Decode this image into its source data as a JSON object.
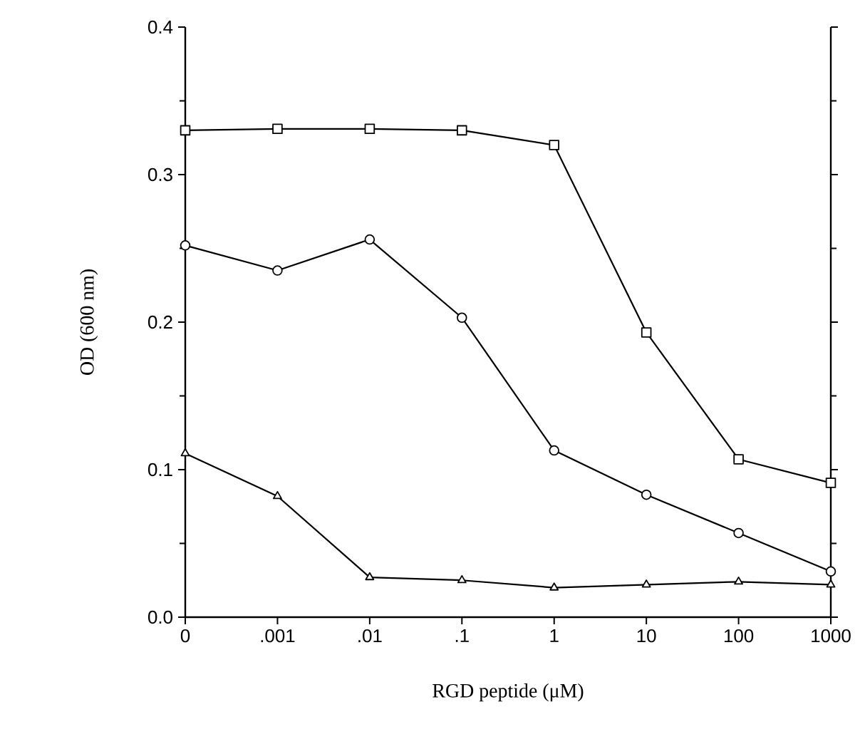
{
  "chart_data": {
    "type": "line",
    "xlabel": "RGD peptide (μM)",
    "ylabel": "OD (600 nm)",
    "categories": [
      "0",
      ".001",
      ".01",
      ".1",
      "1",
      "10",
      "100",
      "1000"
    ],
    "ylim": [
      0,
      0.4
    ],
    "yticks": [
      {
        "value": 0,
        "label": "0.0"
      },
      0.1,
      0.2,
      0.3,
      0.4
    ],
    "line_style": "solid",
    "grid": false,
    "legend": false,
    "series": [
      {
        "color": "#000000",
        "marker": "square",
        "values": [
          0.33,
          0.331,
          0.331,
          0.33,
          0.32,
          0.193,
          0.107,
          0.091
        ]
      },
      {
        "color": "#000000",
        "marker": "circle",
        "values": [
          0.252,
          0.235,
          0.256,
          0.203,
          0.113,
          0.083,
          0.057,
          0.031
        ]
      },
      {
        "color": "#000000",
        "marker": "triangle",
        "values": [
          0.111,
          0.082,
          0.027,
          0.025,
          0.02,
          0.022,
          0.024,
          0.022
        ]
      }
    ]
  }
}
